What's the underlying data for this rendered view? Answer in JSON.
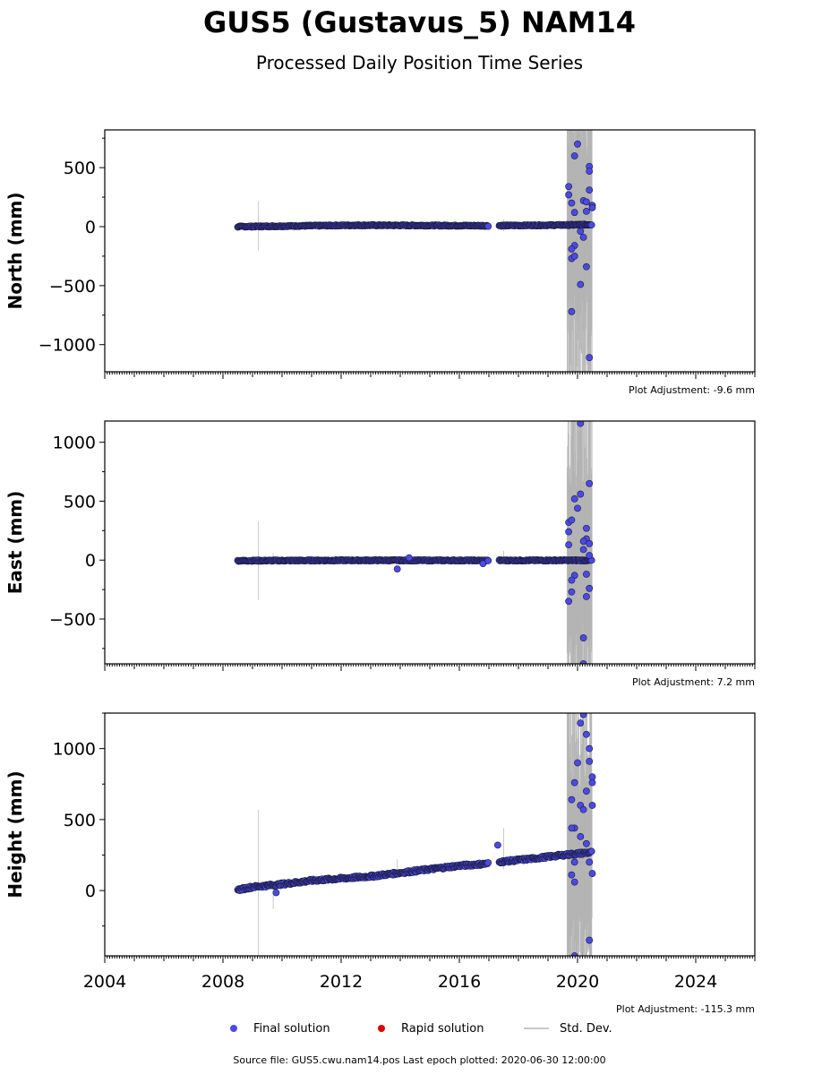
{
  "title": "GUS5 (Gustavus_5) NAM14",
  "subtitle": "Processed Daily Position Time Series",
  "footer": "Source file: GUS5.cwu.nam14.pos  Last epoch plotted: 2020-06-30 12:00:00",
  "legend": {
    "final": "Final solution",
    "rapid": "Rapid solution",
    "stddev": "Std. Dev."
  },
  "colors": {
    "final_fill": "#4a4ae8",
    "final_edge": "#1a1a3a",
    "rapid": "#dd0000",
    "stddev": "#c8c8c8",
    "frame": "#000000"
  },
  "chart_data": [
    {
      "type": "scatter",
      "ylabel": "North (mm)",
      "adjustment": "Plot Adjustment: -9.6 mm",
      "xlim": [
        2004,
        2026
      ],
      "ylim": [
        -1230,
        820
      ],
      "yticks": [
        500,
        0,
        -500,
        -1000
      ],
      "ytick_labels": [
        "500",
        "0",
        "−500",
        "−1000"
      ],
      "xticks": [
        2004,
        2008,
        2012,
        2016,
        2020,
        2024
      ],
      "show_xtick_labels": false,
      "trend": [
        [
          2008.5,
          0
        ],
        [
          2012.5,
          12
        ],
        [
          2017.0,
          8
        ],
        [
          2019.7,
          14
        ],
        [
          2020.5,
          18
        ]
      ],
      "outliers": [
        [
          2020.0,
          700
        ],
        [
          2019.9,
          600
        ],
        [
          2020.4,
          510
        ],
        [
          2020.4,
          470
        ],
        [
          2019.7,
          340
        ],
        [
          2020.4,
          310
        ],
        [
          2019.7,
          270
        ],
        [
          2020.2,
          220
        ],
        [
          2020.3,
          210
        ],
        [
          2019.8,
          200
        ],
        [
          2020.5,
          180
        ],
        [
          2020.3,
          130
        ],
        [
          2020.5,
          160
        ],
        [
          2019.9,
          120
        ],
        [
          2020.1,
          -40
        ],
        [
          2019.9,
          -160
        ],
        [
          2019.8,
          -190
        ],
        [
          2019.8,
          -270
        ],
        [
          2019.9,
          -250
        ],
        [
          2020.2,
          -90
        ],
        [
          2020.3,
          -340
        ],
        [
          2020.1,
          -490
        ],
        [
          2019.8,
          -720
        ],
        [
          2020.4,
          -1110
        ]
      ],
      "errorbars": [
        [
          2009.2,
          -200,
          215
        ],
        [
          2009.7,
          -30,
          40
        ],
        [
          2017.5,
          -40,
          60
        ]
      ]
    },
    {
      "type": "scatter",
      "ylabel": "East (mm)",
      "adjustment": "Plot Adjustment: 7.2 mm",
      "xlim": [
        2004,
        2026
      ],
      "ylim": [
        -880,
        1180
      ],
      "yticks": [
        1000,
        500,
        0,
        -500
      ],
      "ytick_labels": [
        "1000",
        "500",
        "0",
        "−500"
      ],
      "xticks": [
        2004,
        2008,
        2012,
        2016,
        2020,
        2024
      ],
      "show_xtick_labels": false,
      "trend": [
        [
          2008.5,
          -5
        ],
        [
          2012.5,
          -2
        ],
        [
          2017.0,
          -3
        ],
        [
          2019.7,
          -2
        ],
        [
          2020.5,
          -2
        ]
      ],
      "outliers": [
        [
          2020.1,
          1160
        ],
        [
          2020.1,
          560
        ],
        [
          2019.9,
          520
        ],
        [
          2020.4,
          650
        ],
        [
          2020.0,
          440
        ],
        [
          2019.7,
          320
        ],
        [
          2019.8,
          340
        ],
        [
          2020.3,
          270
        ],
        [
          2020.3,
          180
        ],
        [
          2019.7,
          240
        ],
        [
          2020.2,
          160
        ],
        [
          2020.4,
          140
        ],
        [
          2019.7,
          130
        ],
        [
          2020.2,
          90
        ],
        [
          2020.4,
          40
        ],
        [
          2019.9,
          -130
        ],
        [
          2020.3,
          -120
        ],
        [
          2019.8,
          -170
        ],
        [
          2020.4,
          -240
        ],
        [
          2019.8,
          -270
        ],
        [
          2020.3,
          -310
        ],
        [
          2019.7,
          -350
        ],
        [
          2020.2,
          -660
        ],
        [
          2020.2,
          -880
        ],
        [
          2013.9,
          -75
        ],
        [
          2016.8,
          -30
        ],
        [
          2014.3,
          20
        ]
      ],
      "errorbars": [
        [
          2009.2,
          -340,
          330
        ],
        [
          2009.7,
          -30,
          60
        ],
        [
          2017.5,
          -30,
          80
        ]
      ]
    },
    {
      "type": "scatter",
      "ylabel": "Height (mm)",
      "adjustment": "Plot Adjustment: -115.3 mm",
      "xlim": [
        2004,
        2026
      ],
      "ylim": [
        -460,
        1250
      ],
      "yticks": [
        1000,
        500,
        0
      ],
      "ytick_labels": [
        "1000",
        "500",
        "0"
      ],
      "xticks": [
        2004,
        2008,
        2012,
        2016,
        2020,
        2024
      ],
      "xtick_labels": [
        "2004",
        "2008",
        "2012",
        "2016",
        "2020",
        "2024"
      ],
      "show_xtick_labels": true,
      "trend": [
        [
          2008.5,
          5
        ],
        [
          2009.0,
          25
        ],
        [
          2010.0,
          45
        ],
        [
          2011.0,
          70
        ],
        [
          2012.0,
          85
        ],
        [
          2013.0,
          100
        ],
        [
          2014.0,
          125
        ],
        [
          2015.0,
          150
        ],
        [
          2016.0,
          175
        ],
        [
          2017.0,
          190
        ],
        [
          2017.5,
          205
        ],
        [
          2018.5,
          225
        ],
        [
          2019.5,
          250
        ],
        [
          2020.5,
          270
        ]
      ],
      "outliers": [
        [
          2020.2,
          1240
        ],
        [
          2020.1,
          1180
        ],
        [
          2020.3,
          1100
        ],
        [
          2020.4,
          1000
        ],
        [
          2020.0,
          900
        ],
        [
          2020.4,
          910
        ],
        [
          2020.5,
          800
        ],
        [
          2019.9,
          760
        ],
        [
          2020.5,
          760
        ],
        [
          2020.3,
          700
        ],
        [
          2019.8,
          640
        ],
        [
          2020.1,
          600
        ],
        [
          2020.5,
          600
        ],
        [
          2020.2,
          570
        ],
        [
          2019.9,
          440
        ],
        [
          2020.1,
          380
        ],
        [
          2019.8,
          440
        ],
        [
          2020.3,
          330
        ],
        [
          2019.9,
          200
        ],
        [
          2020.4,
          200
        ],
        [
          2019.8,
          110
        ],
        [
          2019.9,
          60
        ],
        [
          2020.5,
          120
        ],
        [
          2020.4,
          -350
        ],
        [
          2019.9,
          -460
        ],
        [
          2017.3,
          320
        ],
        [
          2009.8,
          -15
        ]
      ],
      "errorbars": [
        [
          2009.2,
          -460,
          570
        ],
        [
          2009.7,
          -130,
          60
        ],
        [
          2017.5,
          150,
          440
        ],
        [
          2013.9,
          120,
          220
        ]
      ]
    }
  ]
}
